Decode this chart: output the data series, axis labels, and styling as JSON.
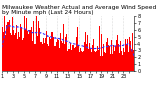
{
  "title": "Milwaukee Weather Actual and Average Wind Speed by Minute mph (Last 24 Hours)",
  "num_points": 1440,
  "ylim": [
    0,
    8
  ],
  "yticks": [
    0,
    1,
    2,
    3,
    4,
    5,
    6,
    7,
    8
  ],
  "bar_color": "#FF0000",
  "line_color": "#3333FF",
  "background_color": "#FFFFFF",
  "grid_color": "#BBBBBB",
  "title_fontsize": 4.2,
  "tick_fontsize": 3.5,
  "seed": 42
}
